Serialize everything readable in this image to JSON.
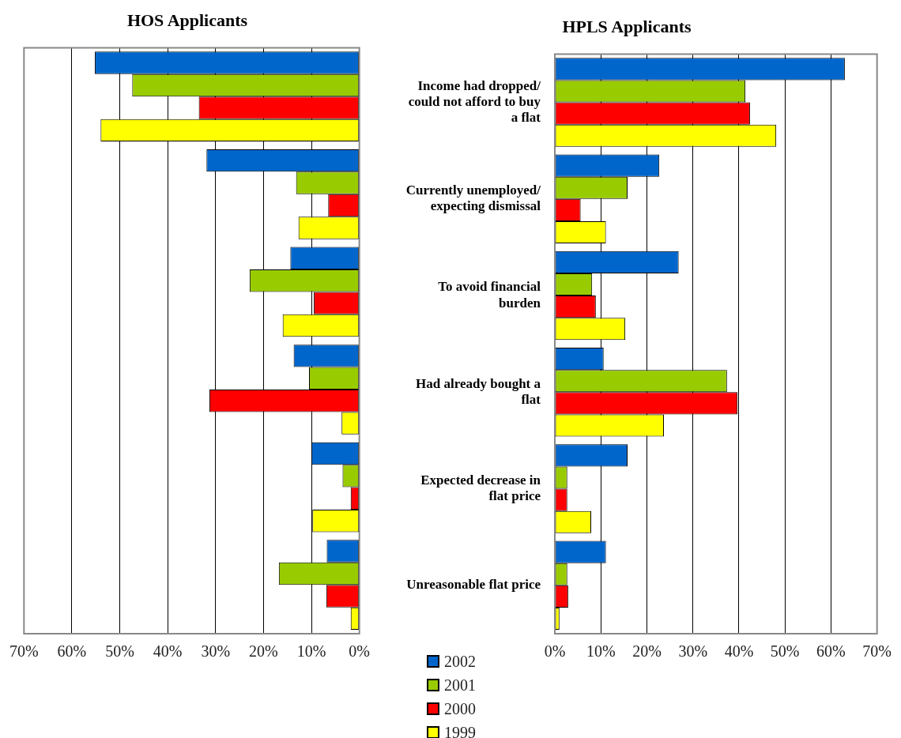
{
  "chart_data": [
    {
      "type": "bar",
      "orientation": "horizontal",
      "title": "HOS Applicants",
      "tick_labels": "x",
      "grid": "x",
      "categories": [
        null,
        null,
        null,
        null,
        null,
        null
      ],
      "xlim": [
        70,
        0
      ],
      "xticks": [
        {
          "value": 70,
          "label": "70%"
        },
        {
          "value": 60,
          "label": "60%"
        },
        {
          "value": 50,
          "label": "50%"
        },
        {
          "value": 40,
          "label": "40%"
        },
        {
          "value": 30,
          "label": "30%"
        },
        {
          "value": 20,
          "label": "20%"
        },
        {
          "value": 10,
          "label": "10%"
        },
        {
          "value": 0,
          "label": "0%"
        }
      ],
      "series": [
        {
          "color": "#0066cc",
          "values": [
            55.2,
            31.9,
            14.4,
            13.7,
            10.0,
            6.8
          ]
        },
        {
          "color": "#99cc00",
          "values": [
            47.4,
            13.2,
            22.9,
            10.5,
            3.5,
            16.8
          ]
        },
        {
          "color": "#ff0000",
          "values": [
            33.5,
            6.5,
            9.5,
            31.3,
            1.8,
            6.9
          ]
        },
        {
          "color": "#ffff00",
          "values": [
            54.0,
            12.7,
            16.0,
            3.7,
            9.8,
            1.8
          ]
        }
      ]
    },
    {
      "type": "bar",
      "orientation": "horizontal",
      "title": "HPLS Applicants",
      "grid": "x",
      "legend": "bottom left",
      "categories": [
        "Income had dropped/ could not afford to buy a flat",
        "Currently unemployed/ expecting dismissal",
        "To avoid financial burden",
        "Had already bought a flat",
        "Expected decrease in flat price",
        "Unreasonable flat price"
      ],
      "xlim": [
        0,
        70
      ],
      "xticks": [
        {
          "value": 0,
          "label": "0%"
        },
        {
          "value": 10,
          "label": "10%"
        },
        {
          "value": 20,
          "label": "20%"
        },
        {
          "value": 30,
          "label": "30%"
        },
        {
          "value": 40,
          "label": "40%"
        },
        {
          "value": 50,
          "label": "50%"
        },
        {
          "value": 60,
          "label": "60%"
        },
        {
          "value": 70,
          "label": "70%"
        }
      ],
      "series": [
        {
          "name": "2002",
          "color": "#0066cc",
          "values": [
            63.0,
            22.7,
            26.9,
            10.6,
            15.8,
            11.1
          ]
        },
        {
          "name": "2001",
          "color": "#99cc00",
          "values": [
            41.4,
            15.8,
            8.1,
            37.4,
            2.7,
            2.7
          ]
        },
        {
          "name": "2000",
          "color": "#ff0000",
          "values": [
            42.4,
            5.6,
            8.9,
            39.7,
            2.7,
            2.9
          ]
        },
        {
          "name": "1999",
          "color": "#ffff00",
          "values": [
            48.1,
            11.1,
            15.3,
            23.7,
            7.9,
            1.0
          ]
        }
      ]
    }
  ]
}
